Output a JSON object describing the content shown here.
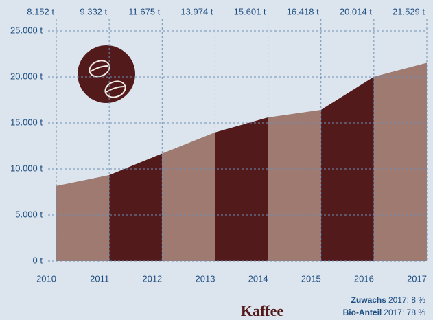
{
  "chart_data": {
    "type": "area",
    "title": "Kaffee",
    "x": [
      2010,
      2011,
      2012,
      2013,
      2014,
      2015,
      2016,
      2017
    ],
    "xlim": [
      2010,
      2017
    ],
    "values": [
      8152,
      9332,
      11675,
      13974,
      15601,
      16418,
      20014,
      21529
    ],
    "value_labels": [
      "8.152 t",
      "9.332 t",
      "11.675 t",
      "13.974 t",
      "15.601 t",
      "16.418 t",
      "20.014 t",
      "21.529 t"
    ],
    "colors": [
      "#9e7a70",
      "#521a1a"
    ],
    "ylim": [
      0,
      25000
    ],
    "yticks": [
      {
        "value": 0,
        "label": "0 t"
      },
      {
        "value": 5000,
        "label": "5.000 t"
      },
      {
        "value": 10000,
        "label": "10.000 t"
      },
      {
        "value": 15000,
        "label": "15.000 t"
      },
      {
        "value": 20000,
        "label": "20.000 t"
      },
      {
        "value": 25000,
        "label": "25.000 t"
      }
    ],
    "grid": true,
    "annotations": [
      {
        "label": "Zuwachs",
        "text": "2017:   8 %"
      },
      {
        "label": "Bio-Anteil",
        "text": "2017: 78 %"
      }
    ]
  }
}
